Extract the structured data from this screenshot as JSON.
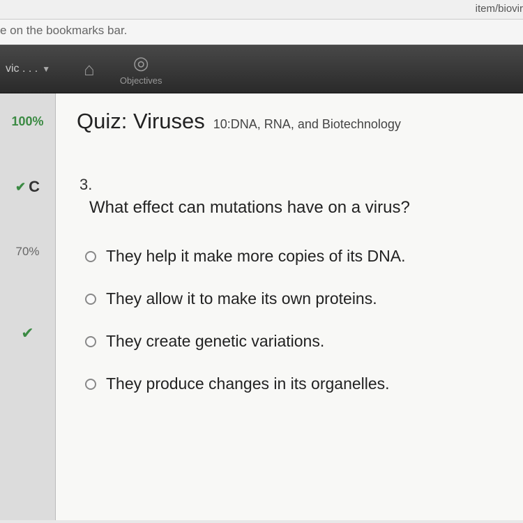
{
  "url_fragment": "item/biovir",
  "bookmarks_hint": "e on the bookmarks bar.",
  "nav": {
    "tab_label": "vic . . .",
    "home_icon": "⌂",
    "objectives_icon": "◎",
    "objectives_label": "Objectives"
  },
  "sidebar": {
    "score1": "100%",
    "status_check": "✔",
    "status_letter": "C",
    "score2": "70%",
    "check2": "✔"
  },
  "quiz": {
    "title": "Quiz: Viruses",
    "unit": "10:DNA, RNA, and Biotechnology",
    "question_number": "3.",
    "question_text": "What effect can mutations have on a virus?",
    "options": [
      "They help it make more copies of its DNA.",
      "They allow it to make its own proteins.",
      "They create genetic variations.",
      "They produce changes in its organelles."
    ]
  },
  "colors": {
    "sidebar_green": "#3b8a43",
    "nav_bg": "#3a3a3a",
    "content_bg": "#f8f8f6"
  }
}
